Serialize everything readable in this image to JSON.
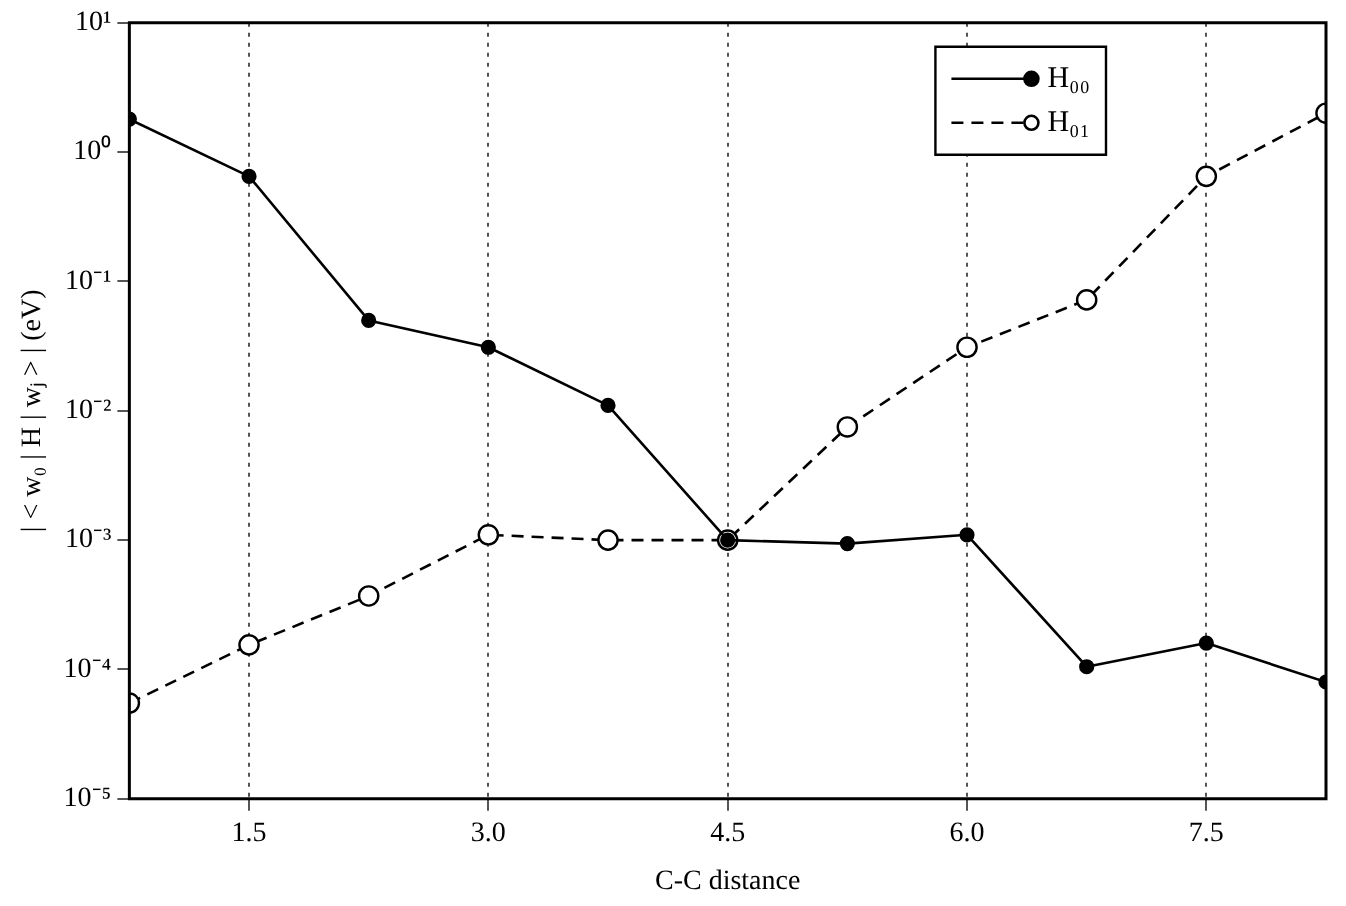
{
  "chart_data": {
    "type": "line",
    "xlabel": "C-C distance",
    "ylabel": "| < w₀ | H | wⱼ > | (eV)",
    "x": [
      0.75,
      1.5,
      2.25,
      3.0,
      3.75,
      4.5,
      5.25,
      6.0,
      6.75,
      7.5,
      8.25
    ],
    "series": [
      {
        "name": "H₀₀",
        "color": "#000000",
        "line_style": "solid",
        "values": [
          1.8,
          0.65,
          0.05,
          0.031,
          0.011,
          0.001,
          0.00094,
          0.0011,
          0.000105,
          0.00016,
          8e-05
        ]
      },
      {
        "name": "H₀₁",
        "color": "#000000",
        "line_style": "dashed",
        "values": [
          5.5e-05,
          0.000155,
          0.00037,
          0.0011,
          0.001,
          0.001,
          0.0075,
          0.031,
          0.072,
          0.65,
          2.0
        ]
      }
    ],
    "log": "y",
    "xlim": [
      0.75,
      8.25
    ],
    "ylim": [
      1e-05,
      10
    ],
    "xticks": [
      {
        "value": 1.5,
        "label": "1.5"
      },
      {
        "value": 3.0,
        "label": "3.0"
      },
      {
        "value": 4.5,
        "label": "4.5"
      },
      {
        "value": 6.0,
        "label": "6.0"
      },
      {
        "value": 7.5,
        "label": "7.5"
      }
    ],
    "yticks": [
      {
        "value": 1e-05,
        "label": "10⁻⁵"
      },
      {
        "value": 0.0001,
        "label": "10⁻⁴"
      },
      {
        "value": 0.001,
        "label": "10⁻³"
      },
      {
        "value": 0.01,
        "label": "10⁻²"
      },
      {
        "value": 0.1,
        "label": "10⁻¹"
      },
      {
        "value": 1,
        "label": "10⁰"
      },
      {
        "value": 10,
        "label": "10¹"
      }
    ],
    "grid": "x",
    "legend": "top right",
    "marker": "circle"
  }
}
